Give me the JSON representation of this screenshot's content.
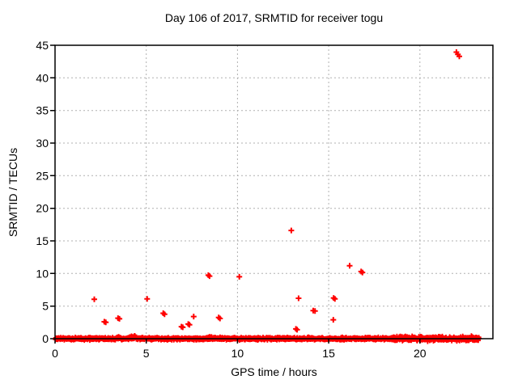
{
  "chart_data": {
    "type": "scatter",
    "title": "Day 106 of 2017, SRMTID for receiver togu",
    "xlabel": "GPS time / hours",
    "ylabel": "SRMTID / TECUs",
    "xlim": [
      0,
      24
    ],
    "ylim": [
      0,
      45
    ],
    "xticks": [
      0,
      5,
      10,
      15,
      20
    ],
    "yticks": [
      0,
      5,
      10,
      15,
      20,
      25,
      30,
      35,
      40,
      45
    ],
    "grid": true,
    "legend": "none",
    "marker": "plus",
    "colors": {
      "series": "#ff0000",
      "grid": "#b0b0b0",
      "axis": "#000000",
      "background": "#ffffff",
      "text": "#000000"
    },
    "outlier_points": [
      [
        2.15,
        6.05
      ],
      [
        2.7,
        2.6
      ],
      [
        2.78,
        2.5
      ],
      [
        3.45,
        3.15
      ],
      [
        3.53,
        3.05
      ],
      [
        5.05,
        6.1
      ],
      [
        5.93,
        3.9
      ],
      [
        6.0,
        3.75
      ],
      [
        6.93,
        1.85
      ],
      [
        7.0,
        1.75
      ],
      [
        7.3,
        2.25
      ],
      [
        7.37,
        2.15
      ],
      [
        7.6,
        3.4
      ],
      [
        8.4,
        9.75
      ],
      [
        8.47,
        9.6
      ],
      [
        8.97,
        3.25
      ],
      [
        9.04,
        3.1
      ],
      [
        10.1,
        9.5
      ],
      [
        12.95,
        16.6
      ],
      [
        13.2,
        1.5
      ],
      [
        13.27,
        1.38
      ],
      [
        13.35,
        6.2
      ],
      [
        14.15,
        4.3
      ],
      [
        14.25,
        4.25
      ],
      [
        15.25,
        2.9
      ],
      [
        15.27,
        6.25
      ],
      [
        15.34,
        6.1
      ],
      [
        16.15,
        11.2
      ],
      [
        16.78,
        10.3
      ],
      [
        16.85,
        10.15
      ],
      [
        22.0,
        43.95
      ],
      [
        22.08,
        43.6
      ],
      [
        22.16,
        43.3
      ]
    ],
    "baseline_band": {
      "description": "dense band of plus markers, noise around 0 TECU",
      "x_min": 0.03,
      "x_max": 23.25,
      "n_points": 2000,
      "base_spread": 0.1,
      "rough_after": 18.5,
      "rough_spread": 0.17,
      "bumps": [
        [
          3.6,
          0.15,
          0.22
        ],
        [
          4.3,
          0.22,
          0.5
        ],
        [
          8.7,
          0.3,
          0.28
        ],
        [
          12.3,
          0.15,
          0.18
        ]
      ],
      "seed": 20170406
    }
  }
}
